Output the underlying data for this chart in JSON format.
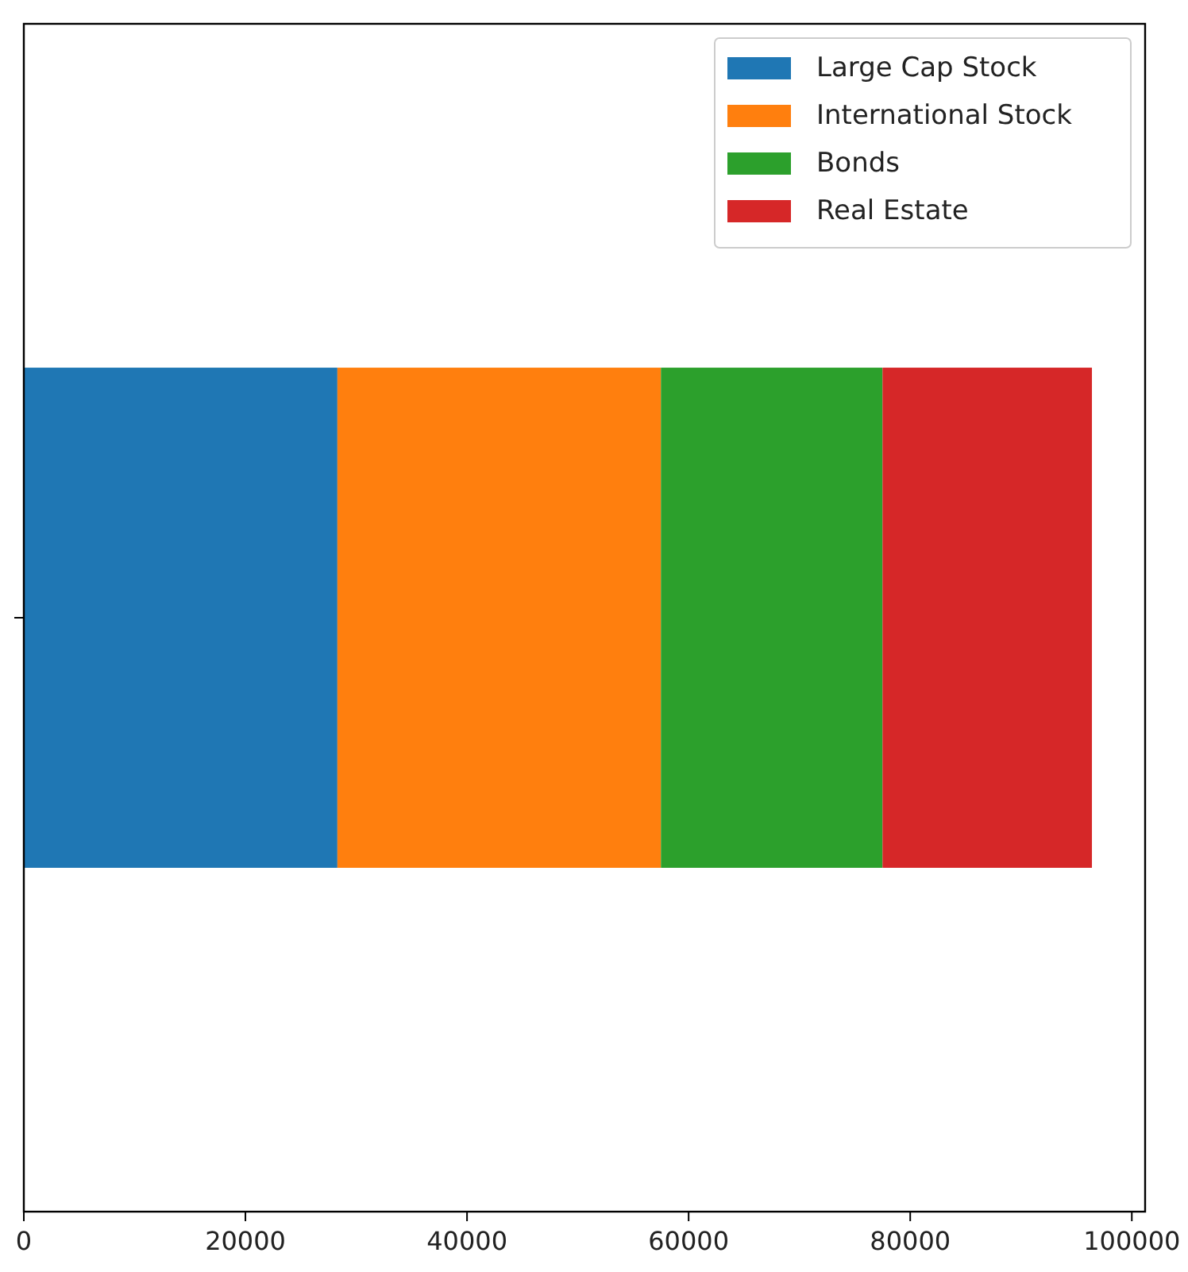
{
  "chart_data": {
    "type": "bar",
    "orientation": "horizontal",
    "stacked": true,
    "categories": [
      null
    ],
    "series": [
      {
        "name": "Large Cap Stock",
        "color": "#1f77b4",
        "values": [
          28300
        ]
      },
      {
        "name": "International Stock",
        "color": "#ff7f0e",
        "values": [
          29200
        ]
      },
      {
        "name": "Bonds",
        "color": "#2ca02c",
        "values": [
          20000
        ]
      },
      {
        "name": "Real Estate",
        "color": "#d62728",
        "values": [
          18900
        ]
      }
    ],
    "xlim": [
      0,
      101200
    ],
    "xticks": [
      0,
      20000,
      40000,
      60000,
      80000,
      100000
    ],
    "legend": "top right",
    "grid": false
  }
}
